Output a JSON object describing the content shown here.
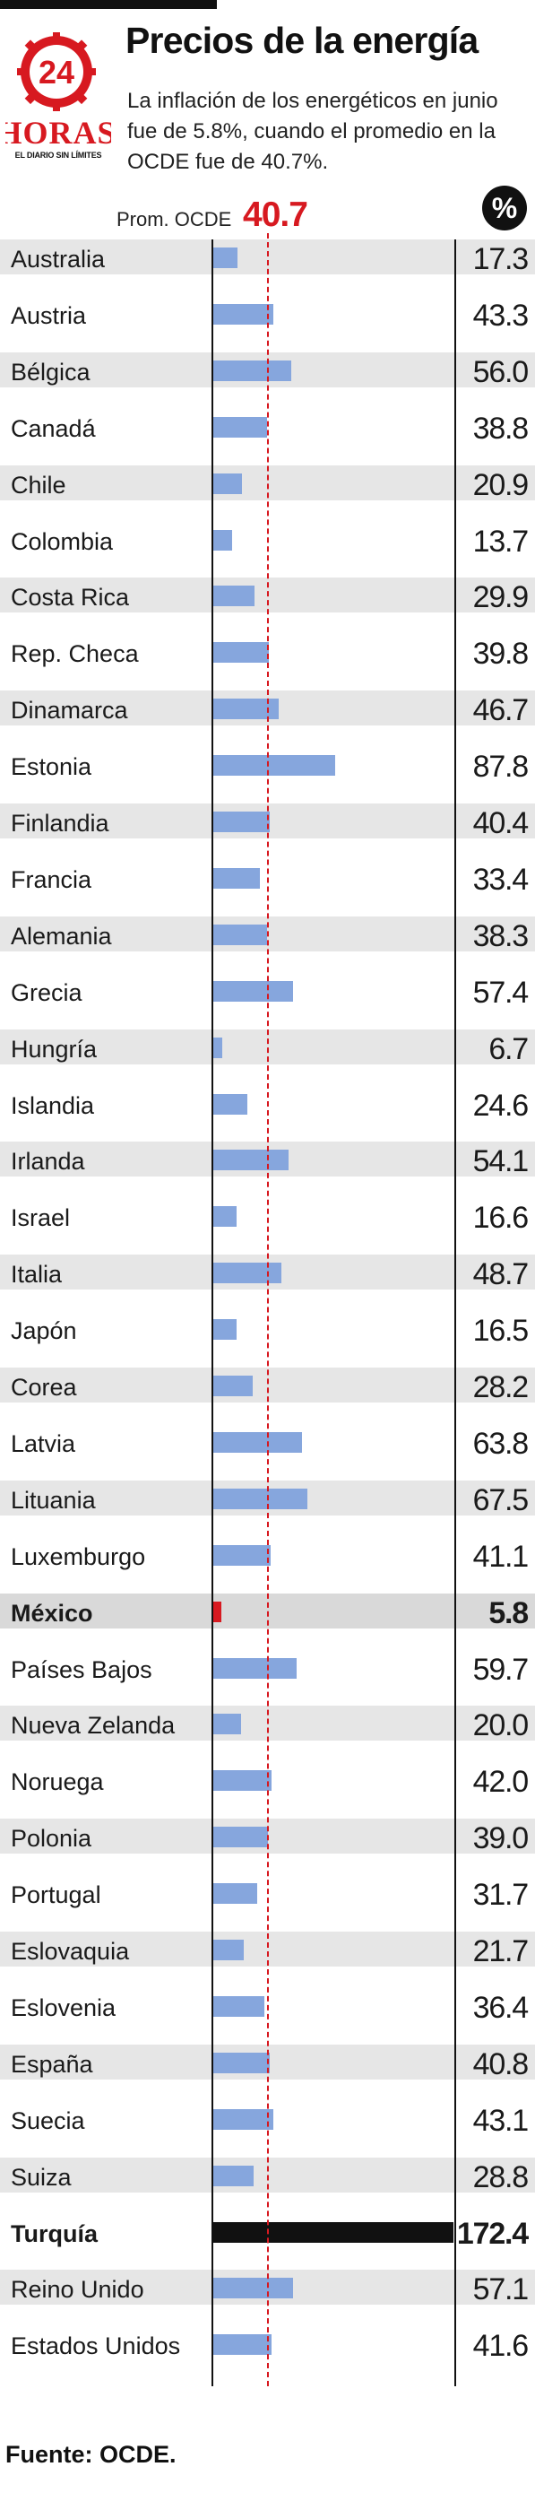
{
  "header": {
    "title": "Precios de la energía",
    "subtitle": "La inflación de los energéticos en junio fue de 5.8%, cuando el promedio en la OCDE fue de 40.7%."
  },
  "logo": {
    "number": "24",
    "word": "HORAS",
    "tagline": "EL DIARIO SIN LÍMITES"
  },
  "average": {
    "label": "Prom. OCDE",
    "value": "40.7"
  },
  "unit_badge": "%",
  "source": "Fuente: OCDE.",
  "colors": {
    "bar": "#86a6dd",
    "highlight_mexico": "#d71920",
    "highlight_turquia": "#111111",
    "average_line": "#d71920"
  },
  "chart_data": {
    "type": "bar",
    "orientation": "horizontal",
    "categories": [
      "Australia",
      "Austria",
      "Bélgica",
      "Canadá",
      "Chile",
      "Colombia",
      "Costa Rica",
      "Rep. Checa",
      "Dinamarca",
      "Estonia",
      "Finlandia",
      "Francia",
      "Alemania",
      "Grecia",
      "Hungría",
      "Islandia",
      "Irlanda",
      "Israel",
      "Italia",
      "Japón",
      "Corea",
      "Latvia",
      "Lituania",
      "Luxemburgo",
      "México",
      "Países Bajos",
      "Nueva Zelanda",
      "Noruega",
      "Polonia",
      "Portugal",
      "Eslovaquia",
      "Eslovenia",
      "España",
      "Suecia",
      "Suiza",
      "Turquía",
      "Reino Unido",
      "Estados Unidos"
    ],
    "values": [
      17.3,
      43.3,
      56.0,
      38.8,
      20.9,
      13.7,
      29.9,
      39.8,
      46.7,
      87.8,
      40.4,
      33.4,
      38.3,
      57.4,
      6.7,
      24.6,
      54.1,
      16.6,
      48.7,
      16.5,
      28.2,
      63.8,
      67.5,
      41.1,
      5.8,
      59.7,
      20.0,
      42.0,
      39.0,
      31.7,
      21.7,
      36.4,
      40.8,
      43.1,
      28.8,
      172.4,
      57.1,
      41.6
    ],
    "labels": [
      "17.3",
      "43.3",
      "56.0",
      "38.8",
      "20.9",
      "13.7",
      "29.9",
      "39.8",
      "46.7",
      "87.8",
      "40.4",
      "33.4",
      "38.3",
      "57.4",
      "6.7",
      "24.6",
      "54.1",
      "16.6",
      "48.7",
      "16.5",
      "28.2",
      "63.8",
      "67.5",
      "41.1",
      "5.8",
      "59.7",
      "20.0",
      "42.0",
      "39.0",
      "31.7",
      "21.7",
      "36.4",
      "40.8",
      "43.1",
      "28.8",
      "172.4",
      "57.1",
      "41.6"
    ],
    "highlighted": [
      "México",
      "Turquía"
    ],
    "reference_line": 40.7,
    "xlim": [
      0,
      172.4
    ],
    "grid": false
  }
}
